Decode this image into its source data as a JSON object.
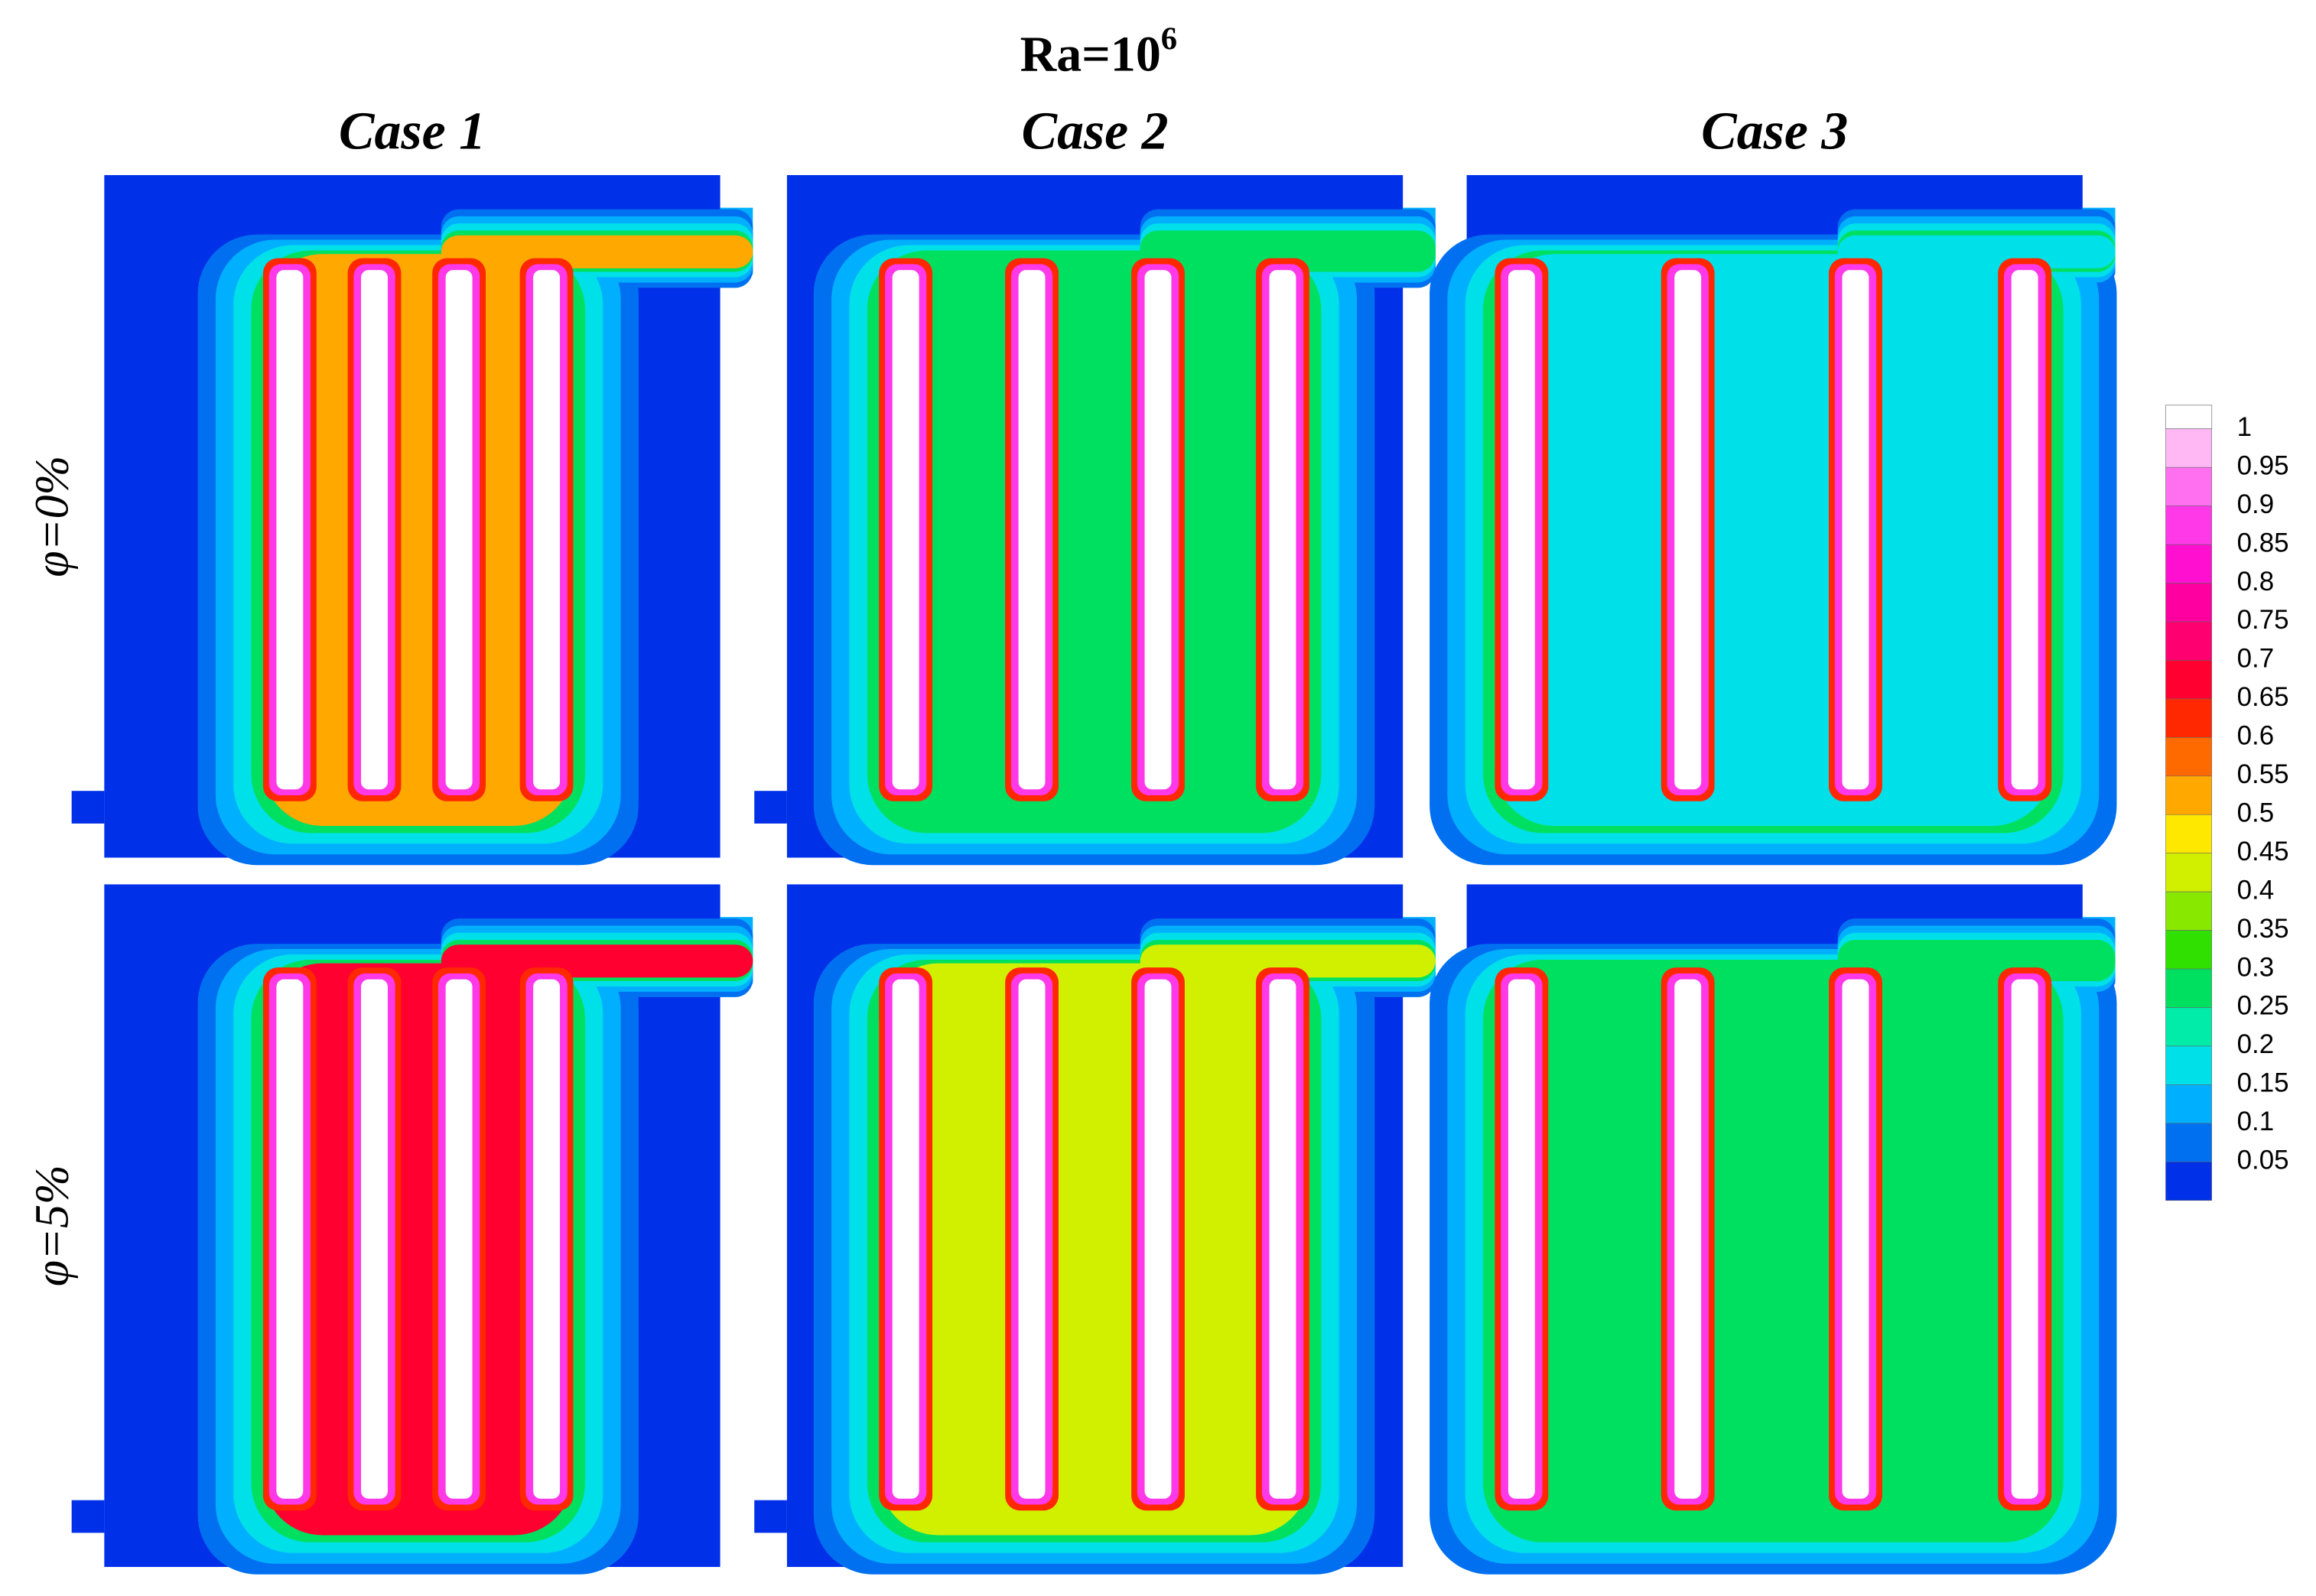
{
  "title": {
    "base": "Ra=10",
    "exponent": "6"
  },
  "columns": [
    "Case 1",
    "Case 2",
    "Case 3"
  ],
  "rows": [
    "φ=0%",
    "φ=5%"
  ],
  "colorbar": {
    "levels": [
      1,
      0.95,
      0.9,
      0.85,
      0.8,
      0.75,
      0.7,
      0.65,
      0.6,
      0.55,
      0.5,
      0.45,
      0.4,
      0.35,
      0.3,
      0.25,
      0.2,
      0.15,
      0.1,
      0.05
    ],
    "colors": [
      "#ffb8f4",
      "#ff70f0",
      "#ff38e8",
      "#ff10d0",
      "#ff00a0",
      "#ff0070",
      "#ff0030",
      "#ff2800",
      "#ff6a00",
      "#ffa800",
      "#ffe800",
      "#d0f000",
      "#88e800",
      "#30e000",
      "#00e060",
      "#00eca8",
      "#00e0e8",
      "#00b0ff",
      "#0070f0",
      "#0030e8"
    ]
  }
}
